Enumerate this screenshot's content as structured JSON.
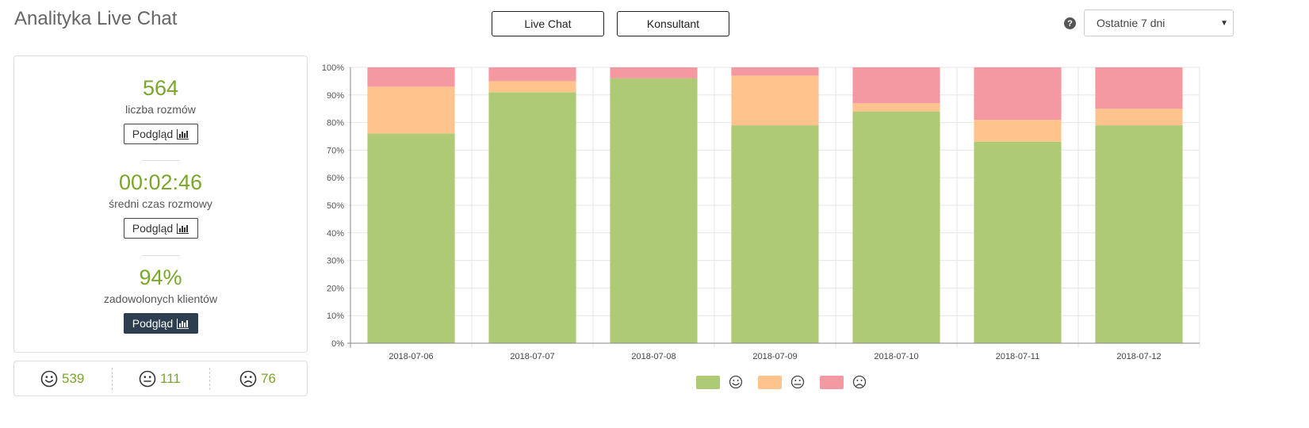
{
  "header": {
    "title": "Analityka Live Chat",
    "tabs": [
      "Live Chat",
      "Konsultant"
    ],
    "help_icon": "question-circle-icon",
    "range_select": {
      "value": "Ostatnie 7 dni"
    }
  },
  "stats": [
    {
      "value": "564",
      "label": "liczba rozmów",
      "button": "Podgląd",
      "active": false
    },
    {
      "value": "00:02:46",
      "label": "średni czas rozmowy",
      "button": "Podgląd",
      "active": false
    },
    {
      "value": "94%",
      "label": "zadowolonych klientów",
      "button": "Podgląd",
      "active": true
    }
  ],
  "ratings": [
    {
      "icon": "smile-face-icon",
      "count": "539"
    },
    {
      "icon": "neutral-face-icon",
      "count": "111"
    },
    {
      "icon": "sad-face-icon",
      "count": "76"
    }
  ],
  "colors": {
    "accent_green": "#7aa72a",
    "positive": "#aeca74",
    "neutral": "#ffc38e",
    "negative": "#f498a2",
    "active_button": "#2c3e50"
  },
  "chart_data": {
    "type": "bar",
    "stacked": true,
    "categories": [
      "2018-07-06",
      "2018-07-07",
      "2018-07-08",
      "2018-07-09",
      "2018-07-10",
      "2018-07-11",
      "2018-07-12"
    ],
    "series": [
      {
        "icon": "smile-face-icon",
        "color": "#aeca74",
        "values": [
          76,
          91,
          96,
          79,
          84,
          73,
          79
        ]
      },
      {
        "icon": "neutral-face-icon",
        "color": "#ffc38e",
        "values": [
          17,
          4,
          0,
          18,
          3,
          8,
          6
        ]
      },
      {
        "icon": "sad-face-icon",
        "color": "#f498a2",
        "values": [
          7,
          5,
          4,
          3,
          13,
          19,
          15
        ]
      }
    ],
    "ylim": [
      0,
      100
    ],
    "yticks": [
      "0%",
      "10%",
      "20%",
      "30%",
      "40%",
      "50%",
      "60%",
      "70%",
      "80%",
      "90%",
      "100%"
    ],
    "grid": true,
    "legend": "bottom-center"
  }
}
